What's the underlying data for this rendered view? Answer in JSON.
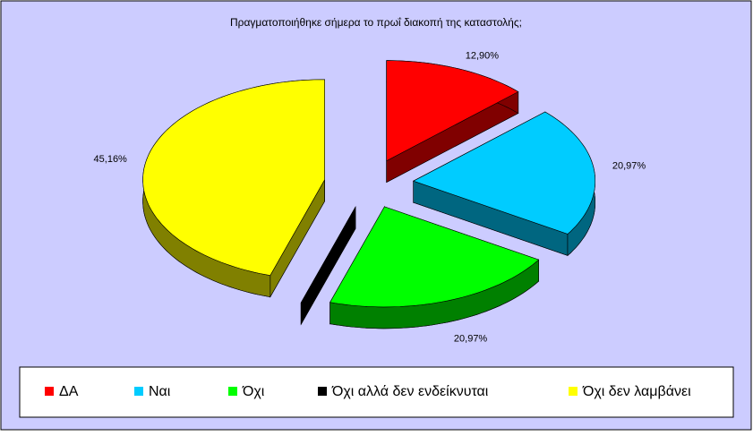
{
  "chart_data": {
    "type": "pie3d",
    "title": "Πραγματοποιήθηκε σήμερα το πρωΐ διακοπή της καταστολής;",
    "categories": [
      "ΔΑ",
      "Ναι",
      "Όχι",
      "Όχι αλλά δεν ενδείκνυται",
      "Όχι δεν λαμβάνει"
    ],
    "values": [
      12.9,
      20.97,
      20.97,
      0,
      45.16
    ],
    "value_labels": [
      "12,90%",
      "20,97%",
      "20,97%",
      null,
      "45,16%"
    ],
    "colors": [
      "#ff0000",
      "#00ccff",
      "#00ff00",
      "#000000",
      "#ffff00"
    ],
    "legend": "bottom"
  }
}
